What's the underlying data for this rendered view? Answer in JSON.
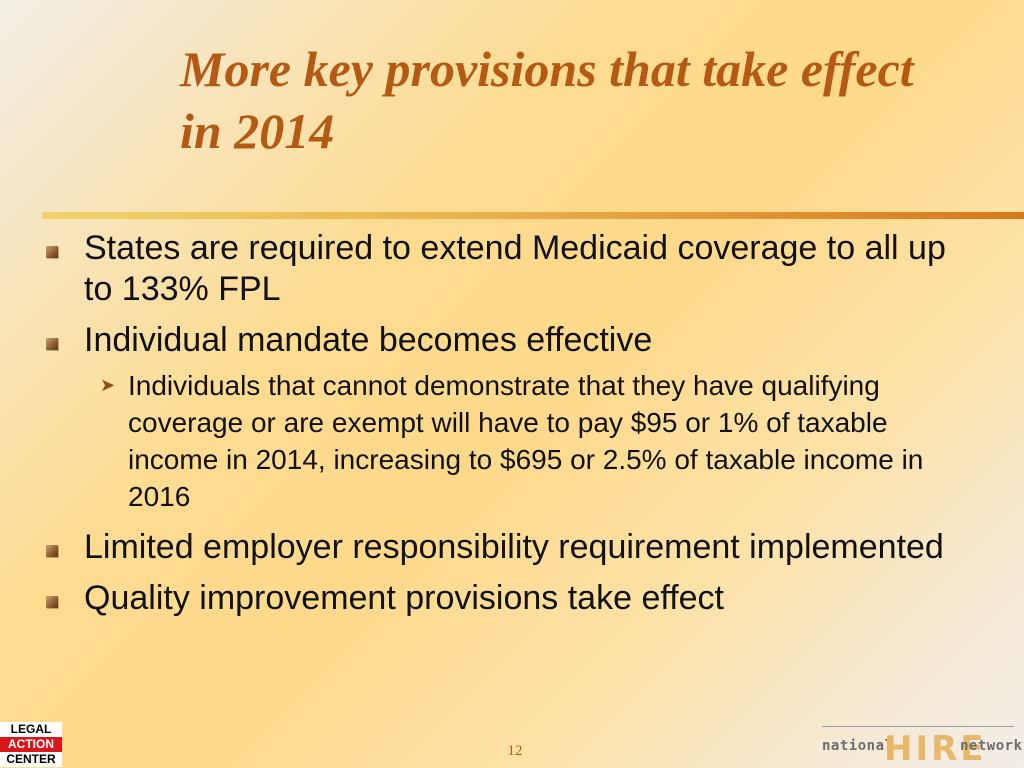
{
  "slide": {
    "title": "More key provisions that take effect in 2014",
    "bullets": [
      "States are required to extend Medicaid coverage to all up to 133% FPL",
      "Individual mandate becomes effective",
      "Limited employer responsibility requirement implemented",
      "Quality improvement provisions take effect"
    ],
    "sub_bullets": [
      "Individuals that cannot demonstrate that they have qualifying coverage or are exempt will have to pay $95 or 1% of taxable income in 2014, increasing to $695 or 2.5% of taxable income in 2016"
    ],
    "page_number": "12"
  },
  "logos": {
    "left": [
      "LEGAL",
      "ACTION",
      "CENTER"
    ],
    "right": [
      "national",
      "HIRE",
      "network"
    ]
  },
  "colors": {
    "title": "#b55a15",
    "bullet_square": "#8c5a2b",
    "legal_action_red": "#d8171c",
    "hire_gold": "#e8b86a"
  },
  "icons": {
    "bullet": "square-bullet-icon",
    "sub_bullet": "arrow-bullet-icon"
  }
}
